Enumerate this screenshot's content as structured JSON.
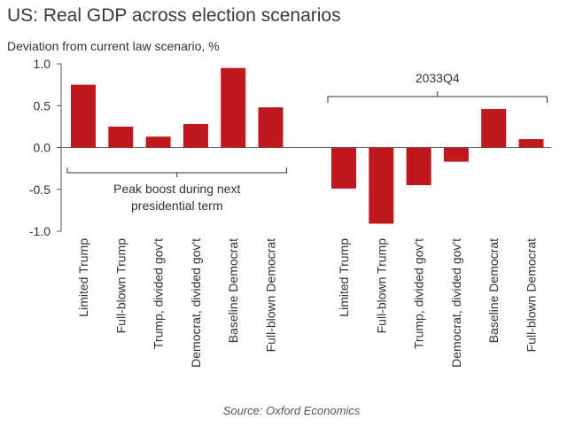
{
  "title": "US: Real GDP across election scenarios",
  "subtitle": "Deviation from current law scenario, %",
  "source": "Source: Oxford Economics",
  "bar_color": "#c0181f",
  "chart_data": {
    "type": "bar",
    "ylim": [
      -1.0,
      1.0
    ],
    "yticks": [
      "1.0",
      "0.5",
      "0.0",
      "-0.5",
      "-1.0"
    ],
    "ytick_values": [
      1.0,
      0.5,
      0.0,
      -0.5,
      -1.0
    ],
    "grid": false,
    "groups": [
      {
        "label": "Peak boost during next presidential term",
        "label_lines": [
          "Peak boost during next",
          "presidential term"
        ],
        "categories": [
          "Limited Trump",
          "Full-blown Trump",
          "Trump, divided gov't",
          "Democrat, divided gov't",
          "Baseline Democrat",
          "Full-blown Democrat"
        ],
        "values": [
          0.75,
          0.25,
          0.13,
          0.28,
          0.95,
          0.48
        ]
      },
      {
        "label": "2033Q4",
        "label_lines": [
          "2033Q4"
        ],
        "categories": [
          "Limited Trump",
          "Full-blown Trump",
          "Trump, divided gov't",
          "Democrat, divided gov't",
          "Baseline Democrat",
          "Full-blown Democrat"
        ],
        "values": [
          -0.49,
          -0.91,
          -0.45,
          -0.17,
          0.46,
          0.1
        ]
      }
    ]
  }
}
